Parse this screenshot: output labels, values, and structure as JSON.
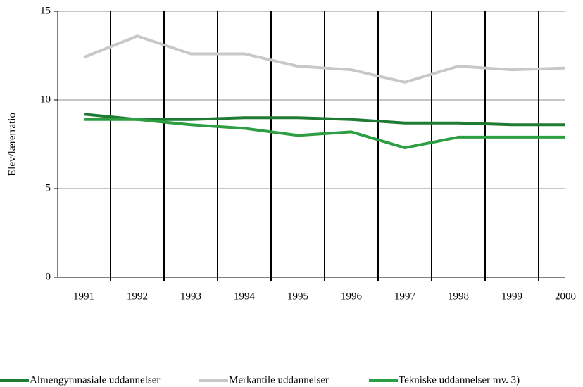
{
  "chart_data": {
    "type": "line",
    "ylabel": "Elev/lærerratio",
    "categories": [
      "1991",
      "1992",
      "1993",
      "1994",
      "1995",
      "1996",
      "1997",
      "1998",
      "1999",
      "2000"
    ],
    "series": [
      {
        "name": "Almengymnasiale uddannelser",
        "color": "#1f7a34",
        "values": [
          9.2,
          8.9,
          8.9,
          9.0,
          9.0,
          8.9,
          8.7,
          8.7,
          8.6,
          8.6
        ]
      },
      {
        "name": "Merkantile uddannelser",
        "color": "#c8c8c8",
        "values": [
          12.4,
          13.6,
          12.6,
          12.6,
          11.9,
          11.7,
          11.0,
          11.9,
          11.7,
          11.8
        ]
      },
      {
        "name": "Tekniske uddannelser mv. 3)",
        "color": "#2e9e42",
        "values": [
          8.9,
          8.9,
          8.6,
          8.4,
          8.0,
          8.2,
          7.3,
          7.9,
          7.9,
          7.9
        ]
      }
    ],
    "ylim": [
      0,
      15
    ],
    "yticks": [
      0,
      5,
      10,
      15
    ],
    "grid": true
  }
}
